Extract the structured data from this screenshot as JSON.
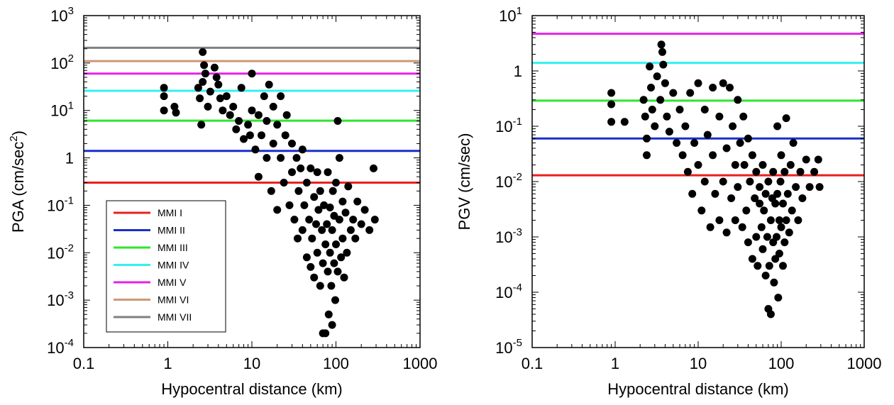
{
  "chart_data": [
    {
      "type": "scatter",
      "xlabel": "Hypocentral distance (km)",
      "ylabel": "PGA (cm/sec²)",
      "xscale": "log",
      "yscale": "log",
      "xlim": [
        0.1,
        1000
      ],
      "ylim": [
        0.0001,
        1000
      ],
      "x_ticks": [
        "0.1",
        "1",
        "10",
        "100",
        "1000"
      ],
      "y_ticks": [
        {
          "base": "10",
          "exp": "-4"
        },
        {
          "base": "10",
          "exp": "-3"
        },
        {
          "base": "10",
          "exp": "-2"
        },
        {
          "base": "10",
          "exp": "-1"
        },
        {
          "base": "1",
          "exp": ""
        },
        {
          "base": "10",
          "exp": "1"
        },
        {
          "base": "10",
          "exp": "2"
        },
        {
          "base": "10",
          "exp": "3"
        }
      ],
      "legend_position": "lower-left",
      "thresholds": [
        {
          "name": "MMI I",
          "value": 0.3,
          "color": "#e8201c"
        },
        {
          "name": "MMI II",
          "value": 1.4,
          "color": "#1a2fc9"
        },
        {
          "name": "MMI III",
          "value": 6.1,
          "color": "#2ee52e"
        },
        {
          "name": "MMI IV",
          "value": 26,
          "color": "#33f0f0"
        },
        {
          "name": "MMI V",
          "value": 60,
          "color": "#e523e5"
        },
        {
          "name": "MMI VI",
          "value": 110,
          "color": "#cc9977"
        },
        {
          "name": "MMI VII",
          "value": 210,
          "color": "#808080"
        }
      ],
      "series": [
        {
          "marker_color": "#000000",
          "points": [
            [
              0.9,
              30
            ],
            [
              0.9,
              20
            ],
            [
              0.9,
              10
            ],
            [
              1.2,
              12
            ],
            [
              1.25,
              9
            ],
            [
              2.3,
              30
            ],
            [
              2.4,
              18
            ],
            [
              2.5,
              5
            ],
            [
              2.6,
              40
            ],
            [
              2.6,
              170
            ],
            [
              2.7,
              90
            ],
            [
              2.8,
              60
            ],
            [
              3.0,
              12
            ],
            [
              3.2,
              25
            ],
            [
              3.6,
              80
            ],
            [
              3.8,
              50
            ],
            [
              4.0,
              35
            ],
            [
              4.2,
              18
            ],
            [
              4.5,
              10
            ],
            [
              5.0,
              20
            ],
            [
              5.5,
              8
            ],
            [
              6.0,
              12
            ],
            [
              6.5,
              4
            ],
            [
              7.0,
              6
            ],
            [
              7.5,
              30
            ],
            [
              8.0,
              2.5
            ],
            [
              9.0,
              5
            ],
            [
              9.5,
              3
            ],
            [
              10,
              60
            ],
            [
              10,
              10
            ],
            [
              11,
              1.5
            ],
            [
              12,
              8
            ],
            [
              12,
              0.4
            ],
            [
              13,
              3
            ],
            [
              14,
              20
            ],
            [
              15,
              1
            ],
            [
              15,
              6
            ],
            [
              16,
              35
            ],
            [
              17,
              0.2
            ],
            [
              18,
              2
            ],
            [
              18,
              12
            ],
            [
              20,
              0.08
            ],
            [
              20,
              5
            ],
            [
              22,
              1
            ],
            [
              22,
              20
            ],
            [
              24,
              0.3
            ],
            [
              25,
              3
            ],
            [
              26,
              8
            ],
            [
              28,
              0.1
            ],
            [
              30,
              0.5
            ],
            [
              30,
              2
            ],
            [
              32,
              0.05
            ],
            [
              34,
              1
            ],
            [
              35,
              0.02
            ],
            [
              36,
              0.2
            ],
            [
              38,
              0.6
            ],
            [
              40,
              0.03
            ],
            [
              40,
              1.5
            ],
            [
              42,
              0.1
            ],
            [
              45,
              0.008
            ],
            [
              45,
              0.3
            ],
            [
              48,
              0.05
            ],
            [
              50,
              0.6
            ],
            [
              50,
              0.005
            ],
            [
              52,
              0.02
            ],
            [
              55,
              0.15
            ],
            [
              55,
              0.003
            ],
            [
              58,
              0.04
            ],
            [
              60,
              0.5
            ],
            [
              60,
              0.01
            ],
            [
              62,
              0.08
            ],
            [
              65,
              0.002
            ],
            [
              65,
              0.2
            ],
            [
              68,
              0.03
            ],
            [
              70,
              0.0002
            ],
            [
              70,
              0.006
            ],
            [
              72,
              0.1
            ],
            [
              75,
              0.0002
            ],
            [
              75,
              0.015
            ],
            [
              78,
              0.04
            ],
            [
              80,
              0.004
            ],
            [
              80,
              0.5
            ],
            [
              82,
              0.0005
            ],
            [
              85,
              0.09
            ],
            [
              85,
              0.01
            ],
            [
              88,
              0.002
            ],
            [
              90,
              0.0003
            ],
            [
              90,
              0.03
            ],
            [
              92,
              0.2
            ],
            [
              95,
              0.006
            ],
            [
              95,
              0.06
            ],
            [
              98,
              0.001
            ],
            [
              100,
              0.3
            ],
            [
              100,
              0.015
            ],
            [
              105,
              6
            ],
            [
              105,
              0.004
            ],
            [
              110,
              0.05
            ],
            [
              110,
              1
            ],
            [
              115,
              0.008
            ],
            [
              120,
              0.12
            ],
            [
              120,
              0.02
            ],
            [
              125,
              0.003
            ],
            [
              130,
              0.07
            ],
            [
              135,
              0.01
            ],
            [
              140,
              0.25
            ],
            [
              150,
              0.03
            ],
            [
              160,
              0.05
            ],
            [
              170,
              0.02
            ],
            [
              180,
              0.12
            ],
            [
              200,
              0.04
            ],
            [
              220,
              0.08
            ],
            [
              250,
              0.03
            ],
            [
              280,
              0.6
            ],
            [
              290,
              0.05
            ]
          ]
        }
      ]
    },
    {
      "type": "scatter",
      "xlabel": "Hypocentral distance (km)",
      "ylabel": "PGV (cm/sec)",
      "xscale": "log",
      "yscale": "log",
      "xlim": [
        0.1,
        1000
      ],
      "ylim": [
        1e-05,
        10
      ],
      "x_ticks": [
        "0.1",
        "1",
        "10",
        "100",
        "1000"
      ],
      "y_ticks": [
        {
          "base": "10",
          "exp": "-5"
        },
        {
          "base": "10",
          "exp": "-4"
        },
        {
          "base": "10",
          "exp": "-3"
        },
        {
          "base": "10",
          "exp": "-2"
        },
        {
          "base": "10",
          "exp": "-1"
        },
        {
          "base": "1",
          "exp": ""
        },
        {
          "base": "10",
          "exp": "1"
        }
      ],
      "thresholds": [
        {
          "name": "MMI I",
          "value": 0.013,
          "color": "#e8201c"
        },
        {
          "name": "MMI II",
          "value": 0.06,
          "color": "#1a2fc9"
        },
        {
          "name": "MMI III",
          "value": 0.29,
          "color": "#2ee52e"
        },
        {
          "name": "MMI IV",
          "value": 1.4,
          "color": "#33f0f0"
        },
        {
          "name": "MMI V",
          "value": 4.7,
          "color": "#e523e5"
        }
      ],
      "series": [
        {
          "marker_color": "#000000",
          "points": [
            [
              0.9,
              0.4
            ],
            [
              0.9,
              0.25
            ],
            [
              0.9,
              0.12
            ],
            [
              1.3,
              0.12
            ],
            [
              2.2,
              0.3
            ],
            [
              2.3,
              0.15
            ],
            [
              2.4,
              0.06
            ],
            [
              2.4,
              0.03
            ],
            [
              2.6,
              1.2
            ],
            [
              2.7,
              0.5
            ],
            [
              2.8,
              0.2
            ],
            [
              3.0,
              0.1
            ],
            [
              3.2,
              0.8
            ],
            [
              3.5,
              0.3
            ],
            [
              3.6,
              3.0
            ],
            [
              3.7,
              2.2
            ],
            [
              3.8,
              1.3
            ],
            [
              4.0,
              0.6
            ],
            [
              4.2,
              0.15
            ],
            [
              4.5,
              0.08
            ],
            [
              5.0,
              0.4
            ],
            [
              5.5,
              0.05
            ],
            [
              6.0,
              0.2
            ],
            [
              6.5,
              0.03
            ],
            [
              7.0,
              0.1
            ],
            [
              7.5,
              0.015
            ],
            [
              8.0,
              0.4
            ],
            [
              8.5,
              0.006
            ],
            [
              9.0,
              0.05
            ],
            [
              10,
              0.6
            ],
            [
              10,
              0.02
            ],
            [
              11,
              0.003
            ],
            [
              12,
              0.2
            ],
            [
              12,
              0.01
            ],
            [
              13,
              0.07
            ],
            [
              14,
              0.0015
            ],
            [
              15,
              0.5
            ],
            [
              15,
              0.03
            ],
            [
              16,
              0.006
            ],
            [
              18,
              0.15
            ],
            [
              18,
              0.002
            ],
            [
              20,
              0.6
            ],
            [
              20,
              0.01
            ],
            [
              22,
              0.04
            ],
            [
              22,
              0.0012
            ],
            [
              24,
              0.5
            ],
            [
              25,
              0.005
            ],
            [
              26,
              0.1
            ],
            [
              28,
              0.02
            ],
            [
              28,
              0.002
            ],
            [
              30,
              0.3
            ],
            [
              30,
              0.008
            ],
            [
              32,
              0.05
            ],
            [
              34,
              0.0015
            ],
            [
              35,
              0.15
            ],
            [
              36,
              0.02
            ],
            [
              38,
              0.003
            ],
            [
              40,
              0.06
            ],
            [
              40,
              0.0008
            ],
            [
              42,
              0.01
            ],
            [
              45,
              0.0004
            ],
            [
              45,
              0.03
            ],
            [
              48,
              0.005
            ],
            [
              50,
              0.001
            ],
            [
              50,
              0.015
            ],
            [
              52,
              0.0003
            ],
            [
              55,
              0.004
            ],
            [
              55,
              0.008
            ],
            [
              58,
              0.0015
            ],
            [
              60,
              0.0006
            ],
            [
              60,
              0.02
            ],
            [
              62,
              0.003
            ],
            [
              65,
              0.0002
            ],
            [
              65,
              0.006
            ],
            [
              68,
              0.001
            ],
            [
              70,
              5e-05
            ],
            [
              70,
              0.01
            ],
            [
              72,
              0.0003
            ],
            [
              75,
              0.002
            ],
            [
              75,
              4e-05
            ],
            [
              78,
              0.005
            ],
            [
              80,
              0.0008
            ],
            [
              80,
              0.015
            ],
            [
              82,
              0.00015
            ],
            [
              85,
              0.004
            ],
            [
              85,
              0.0004
            ],
            [
              88,
              0.001
            ],
            [
              90,
              0.1
            ],
            [
              90,
              0.006
            ],
            [
              92,
              8e-05
            ],
            [
              95,
              0.002
            ],
            [
              95,
              0.0005
            ],
            [
              98,
              0.01
            ],
            [
              100,
              0.0015
            ],
            [
              100,
              0.03
            ],
            [
              105,
              0.0003
            ],
            [
              105,
              0.004
            ],
            [
              110,
              0.0008
            ],
            [
              110,
              0.015
            ],
            [
              115,
              0.14
            ],
            [
              115,
              0.002
            ],
            [
              120,
              0.006
            ],
            [
              125,
              0.0012
            ],
            [
              130,
              0.02
            ],
            [
              135,
              0.003
            ],
            [
              140,
              0.05
            ],
            [
              150,
              0.008
            ],
            [
              160,
              0.002
            ],
            [
              170,
              0.015
            ],
            [
              180,
              0.005
            ],
            [
              200,
              0.025
            ],
            [
              220,
              0.008
            ],
            [
              250,
              0.015
            ],
            [
              280,
              0.025
            ],
            [
              290,
              0.008
            ]
          ]
        }
      ]
    }
  ]
}
